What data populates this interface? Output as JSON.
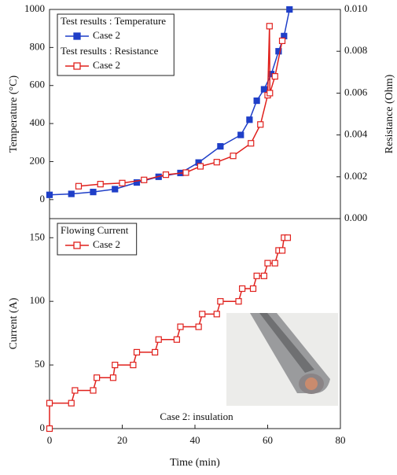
{
  "chart_data": [
    {
      "type": "line",
      "ylabel": "Temperature (°C)",
      "y2label": "Resistance (Ohm)",
      "xlim": [
        0,
        80
      ],
      "ylim": [
        -100,
        1000
      ],
      "yticks": [
        0,
        200,
        400,
        600,
        800,
        1000
      ],
      "y2lim": [
        0,
        0.01
      ],
      "y2ticks": [
        {
          "value": 0,
          "label": "0.000"
        },
        0.002,
        0.004,
        0.006,
        0.008,
        {
          "value": 0.01,
          "label": "0.010"
        }
      ],
      "series": [
        {
          "group": "Test results : Temperature",
          "name": "Case 2",
          "color": "#1f3fc8",
          "marker": "filled-square",
          "x": [
            0,
            6,
            12,
            18,
            24,
            30,
            36,
            41,
            47,
            52.6,
            55,
            57,
            59,
            61,
            63,
            64.5,
            66
          ],
          "values": [
            25,
            30,
            40,
            55,
            90,
            120,
            140,
            195,
            280,
            340,
            420,
            520,
            580,
            660,
            780,
            860,
            1000
          ]
        },
        {
          "group": "Test results : Resistance",
          "name": "Case 2",
          "color": "#e0201c",
          "marker": "open-square",
          "axis": "y2",
          "x": [
            8,
            14,
            20,
            26,
            32,
            37.5,
            41.5,
            46,
            50.5,
            55.4,
            58,
            60,
            60.5,
            60.6,
            62,
            64
          ],
          "values": [
            0.00155,
            0.00165,
            0.0017,
            0.00185,
            0.0021,
            0.0022,
            0.0025,
            0.0027,
            0.003,
            0.0036,
            0.0045,
            0.0059,
            0.0092,
            0.006,
            0.0068,
            0.0085
          ]
        }
      ]
    },
    {
      "type": "line",
      "xlabel": "Time (min)",
      "ylabel": "Current (A)",
      "annotation": "Case 2: insulation",
      "xlim": [
        0,
        80
      ],
      "xticks": [
        0,
        20,
        40,
        60,
        80
      ],
      "ylim": [
        0,
        165
      ],
      "yticks": [
        0,
        50,
        100,
        150
      ],
      "series": [
        {
          "group": "Flowing Current",
          "name": "Case 2",
          "color": "#e0201c",
          "marker": "open-square",
          "x": [
            0,
            0,
            6,
            7,
            12,
            13,
            17.5,
            18,
            23,
            24,
            29,
            30,
            35,
            36,
            41,
            42,
            46,
            47,
            52,
            53,
            56,
            57,
            59,
            60,
            62,
            63,
            64,
            64.5,
            65.5
          ],
          "values": [
            0,
            20,
            20,
            30,
            30,
            40,
            40,
            50,
            50,
            60,
            60,
            70,
            70,
            80,
            80,
            90,
            90,
            100,
            100,
            110,
            110,
            120,
            120,
            130,
            130,
            140,
            140,
            150,
            150
          ]
        }
      ]
    }
  ]
}
